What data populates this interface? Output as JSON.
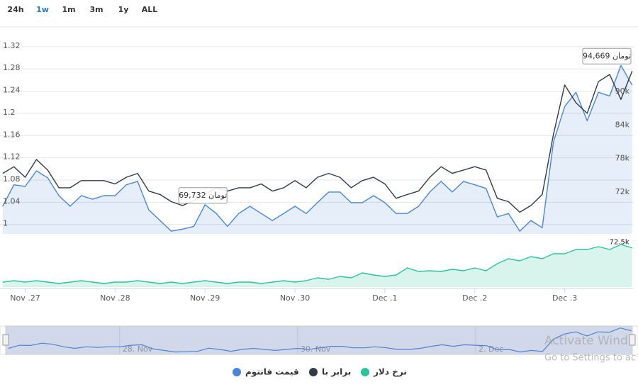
{
  "chart_data": {
    "type": "line",
    "range_buttons": [
      "24h",
      "1w",
      "1m",
      "3m",
      "1y",
      "ALL"
    ],
    "selected_range": "1w",
    "x": [
      -0.25,
      -0.125,
      0,
      0.125,
      0.25,
      0.375,
      0.5,
      0.625,
      0.75,
      0.875,
      1,
      1.125,
      1.25,
      1.375,
      1.5,
      1.625,
      1.75,
      1.875,
      2,
      2.125,
      2.25,
      2.375,
      2.5,
      2.625,
      2.75,
      2.875,
      3,
      3.125,
      3.25,
      3.375,
      3.5,
      3.625,
      3.75,
      3.875,
      4,
      4.125,
      4.25,
      4.375,
      4.5,
      4.625,
      4.75,
      4.875,
      5,
      5.125,
      5.25,
      5.375,
      5.5,
      5.625,
      5.75,
      5.875,
      6,
      6.125,
      6.25,
      6.375,
      6.5,
      6.625,
      6.75
    ],
    "xlim": [
      -0.28,
      6.76
    ],
    "xticks": [
      {
        "value": 0,
        "label": "Nov .27"
      },
      {
        "value": 1,
        "label": "Nov .28"
      },
      {
        "value": 2,
        "label": "Nov .29"
      },
      {
        "value": 3,
        "label": "Nov .30"
      },
      {
        "value": 4,
        "label": "Dec .1"
      },
      {
        "value": 5,
        "label": "Dec .2"
      },
      {
        "value": 6,
        "label": "Dec .3"
      }
    ],
    "ylim": [
      0.983,
      1.353
    ],
    "yticks": [
      1,
      1.04,
      1.08,
      1.12,
      1.16,
      1.2,
      1.24,
      1.28,
      1.32
    ],
    "y2lim": [
      64500,
      101300
    ],
    "y2ticks": [
      {
        "value": 72000,
        "label": "72k"
      },
      {
        "value": 78000,
        "label": "78k"
      },
      {
        "value": 84000,
        "label": "84k"
      },
      {
        "value": 90000,
        "label": "90k"
      }
    ],
    "y3lim": [
      65000,
      74500
    ],
    "grid": true,
    "series": [
      {
        "name": "قیمت فانتوم",
        "color": "#4a85d8",
        "axis": "y2",
        "values": [
          69450,
          73300,
          73000,
          75800,
          74550,
          71350,
          69450,
          71350,
          70700,
          71350,
          71350,
          73300,
          73900,
          68800,
          66900,
          65000,
          65350,
          65850,
          69732,
          68150,
          65850,
          68150,
          69450,
          68150,
          66900,
          68150,
          69450,
          68150,
          70100,
          72000,
          72000,
          70100,
          70100,
          71350,
          70100,
          68150,
          68150,
          69450,
          72000,
          73900,
          72000,
          73900,
          73300,
          72650,
          67550,
          68150,
          65000,
          66900,
          65600,
          80950,
          87300,
          89850,
          84750,
          89850,
          89200,
          94669,
          91150
        ],
        "value_labels": [
          null,
          null,
          null,
          null,
          null,
          null,
          null,
          null,
          null,
          null,
          null,
          null,
          null,
          null,
          null,
          null,
          null,
          null,
          "69,732 تومان",
          null,
          null,
          null,
          null,
          null,
          null,
          null,
          null,
          null,
          null,
          null,
          null,
          null,
          null,
          null,
          null,
          null,
          null,
          null,
          null,
          null,
          null,
          null,
          null,
          null,
          null,
          null,
          null,
          null,
          null,
          null,
          null,
          null,
          null,
          null,
          null,
          "94,669 تومان",
          null
        ]
      },
      {
        "name": "برابر با",
        "color": "#2f3b48",
        "axis": "y",
        "values": [
          1.092,
          1.104,
          1.085,
          1.117,
          1.098,
          1.066,
          1.066,
          1.079,
          1.079,
          1.079,
          1.073,
          1.085,
          1.092,
          1.06,
          1.054,
          1.041,
          1.034,
          1.043,
          1.054,
          1.066,
          1.06,
          1.066,
          1.066,
          1.073,
          1.06,
          1.066,
          1.079,
          1.066,
          1.085,
          1.092,
          1.085,
          1.066,
          1.079,
          1.085,
          1.073,
          1.047,
          1.054,
          1.06,
          1.085,
          1.104,
          1.092,
          1.098,
          1.104,
          1.098,
          1.047,
          1.041,
          1.022,
          1.034,
          1.054,
          1.162,
          1.251,
          1.219,
          1.2,
          1.257,
          1.27,
          1.225,
          1.276
        ]
      },
      {
        "name": "نرخ دلار",
        "color": "#2bc49a",
        "axis": "y3",
        "values": [
          65950,
          66220,
          65950,
          66220,
          65950,
          65680,
          65950,
          66220,
          65950,
          65680,
          65950,
          65950,
          66220,
          65950,
          65680,
          65950,
          65680,
          65950,
          66220,
          65950,
          65680,
          65950,
          65950,
          65680,
          65950,
          66220,
          65950,
          66220,
          66760,
          66490,
          67040,
          66760,
          67710,
          67310,
          67040,
          67310,
          68660,
          67990,
          68120,
          67990,
          68390,
          68120,
          68660,
          68120,
          69480,
          70430,
          70020,
          70840,
          70430,
          71380,
          71380,
          72190,
          72190,
          72730,
          72190,
          73140,
          72500
        ],
        "value_labels": [
          null,
          null,
          null,
          null,
          null,
          null,
          null,
          null,
          null,
          null,
          null,
          null,
          null,
          null,
          null,
          null,
          null,
          null,
          null,
          null,
          null,
          null,
          null,
          null,
          null,
          null,
          null,
          null,
          null,
          null,
          null,
          null,
          null,
          null,
          null,
          null,
          null,
          null,
          null,
          null,
          null,
          null,
          null,
          null,
          null,
          null,
          null,
          null,
          null,
          null,
          null,
          null,
          null,
          null,
          null,
          null,
          "72.5k"
        ]
      }
    ],
    "navigator_ylim": [
      62000,
      97000
    ],
    "navigator_xticks": [
      {
        "value": 1,
        "label": "28. Nov"
      },
      {
        "value": 3,
        "label": "30. Nov"
      },
      {
        "value": 5,
        "label": "2. Dec"
      }
    ],
    "watermark": [
      "Activate Wind",
      "Go to Settings to ac"
    ]
  }
}
